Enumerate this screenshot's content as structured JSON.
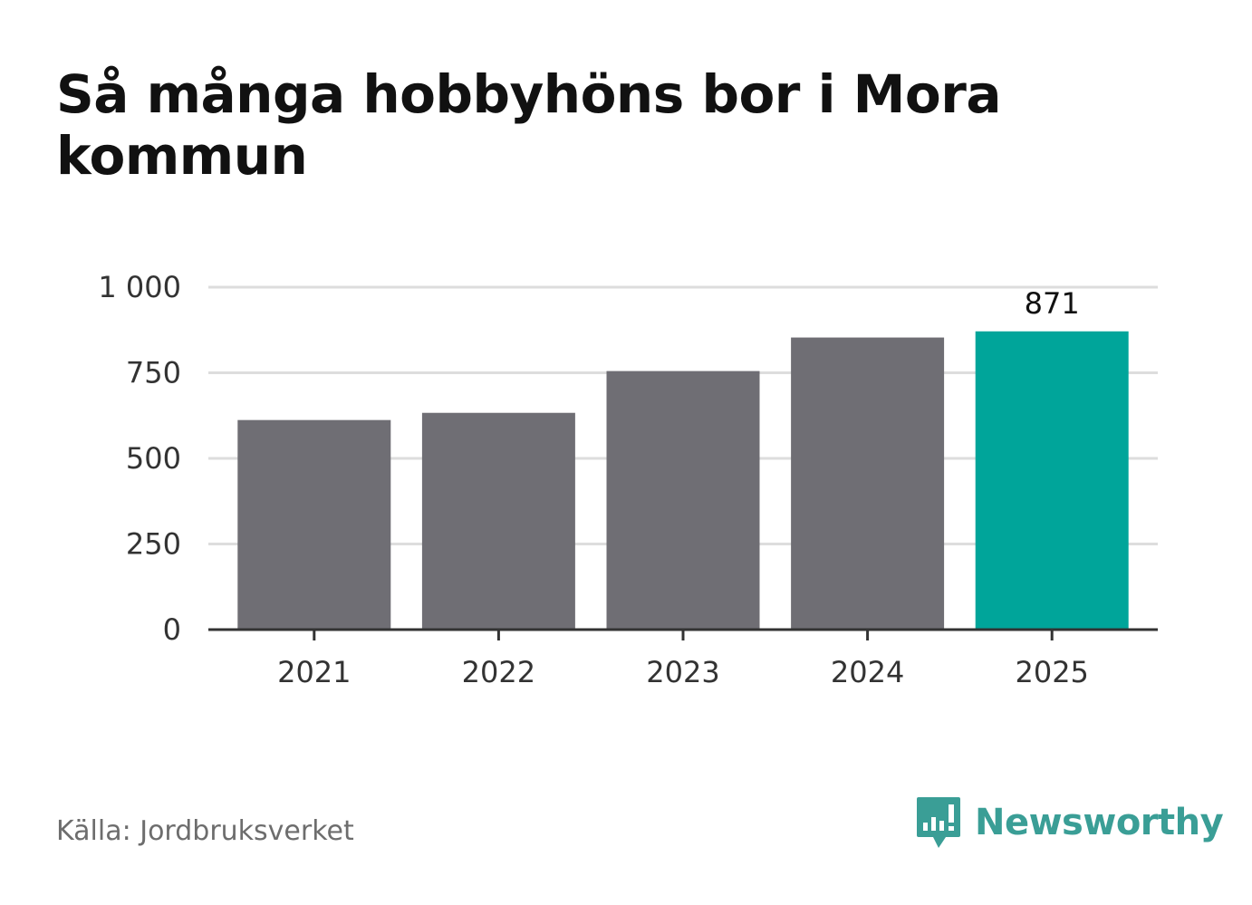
{
  "title": "Så många hobbyhöns bor i Mora kommun",
  "source": "Källa: Jordbruksverket",
  "brand": {
    "name": "Newsworthy",
    "icon": "newsworthy-logo-icon",
    "color": "#3a9e96"
  },
  "chart_data": {
    "type": "bar",
    "categories": [
      "2021",
      "2022",
      "2023",
      "2024",
      "2025"
    ],
    "values": [
      612,
      633,
      755,
      853,
      871
    ],
    "ylim": [
      0,
      1000
    ],
    "yticks": [
      0,
      250,
      500,
      750,
      1000
    ],
    "ytick_labels": [
      "0",
      "250",
      "500",
      "750",
      "1 000"
    ],
    "data_labels": [
      {
        "index": 4,
        "text": "871"
      }
    ],
    "colors": {
      "default": "#6f6e74",
      "highlight": "#00a59a",
      "grid": "#dddddd",
      "axis": "#333333"
    },
    "highlight_index": 4,
    "grid": true,
    "xlabel": "",
    "ylabel": ""
  }
}
